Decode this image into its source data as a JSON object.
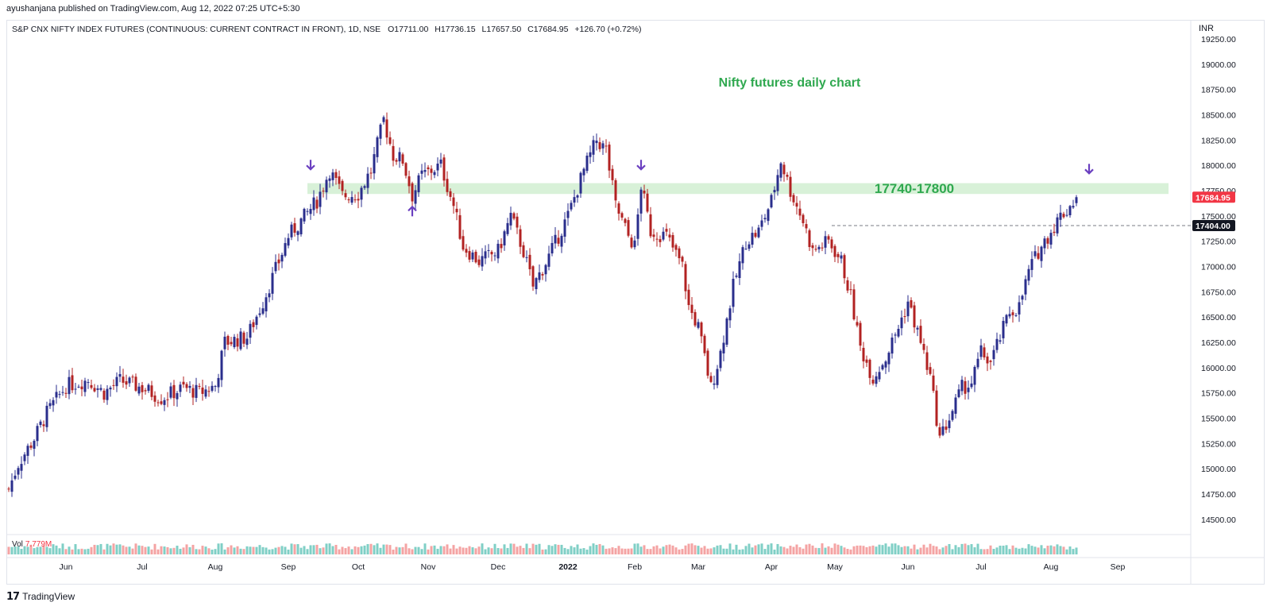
{
  "publisher_line": "ayushanjana published on TradingView.com, Aug 12, 2022 07:25 UTC+5:30",
  "footer": {
    "brand": "TradingView",
    "logo_icon": "tradingview-logo-icon"
  },
  "colors": {
    "up": "#2a2e8c",
    "down": "#b22222",
    "zone": "#d4efd4",
    "accent": "#2fa84f",
    "arrow": "#6a3fc0",
    "last_price": "#f23645",
    "vol_up": "#7fcfc6",
    "vol_down": "#f4a3a3"
  },
  "chart_data": {
    "type": "candlestick",
    "header": {
      "symbol_line": "S&P CNX NIFTY INDEX FUTURES (CONTINUOUS: CURRENT CONTRACT IN FRONT), 1D, NSE",
      "open_label": "O",
      "open": "17711.00",
      "high_label": "H",
      "high": "17736.15",
      "low_label": "L",
      "low": "17657.50",
      "close_label": "C",
      "close": "17684.95",
      "change": "+126.70 (+0.72%)"
    },
    "currency": "INR",
    "title": "Nifty  futures daily chart",
    "zone": {
      "label": "17740-17800",
      "low": 17740,
      "high": 17800
    },
    "last_price_label": "17684.95",
    "reference_label": "17404.00",
    "reference_price": 17404,
    "volume_label": "Vol",
    "volume_value": "7.779M",
    "ylim": [
      14350,
      19430
    ],
    "y_ticks": [
      "19250.00",
      "19000.00",
      "18750.00",
      "18500.00",
      "18250.00",
      "18000.00",
      "17750.00",
      "17500.00",
      "17250.00",
      "17000.00",
      "16750.00",
      "16500.00",
      "16250.00",
      "16000.00",
      "15750.00",
      "15500.00",
      "15250.00",
      "15000.00",
      "14750.00",
      "14500.00"
    ],
    "x_ticks": [
      "Jun",
      "Jul",
      "Aug",
      "Sep",
      "Oct",
      "Nov",
      "Dec",
      "2022",
      "Feb",
      "Mar",
      "Apr",
      "May",
      "Jun",
      "Jul",
      "Aug",
      "Sep"
    ],
    "x_tick_day_index": [
      18,
      42,
      65,
      88,
      110,
      132,
      154,
      176,
      197,
      217,
      240,
      260,
      283,
      306,
      328,
      349
    ],
    "markers": [
      {
        "type": "arrow-down",
        "day_index": 95,
        "price": 17960
      },
      {
        "type": "arrow-up",
        "day_index": 127,
        "price": 17590
      },
      {
        "type": "arrow-down",
        "day_index": 199,
        "price": 17960
      },
      {
        "type": "arrow-down",
        "day_index": 340,
        "price": 17920
      }
    ],
    "close_anchors": [
      [
        0,
        14800
      ],
      [
        3,
        15050
      ],
      [
        8,
        15300
      ],
      [
        12,
        15550
      ],
      [
        18,
        15820
      ],
      [
        25,
        15880
      ],
      [
        30,
        15750
      ],
      [
        35,
        15870
      ],
      [
        42,
        15800
      ],
      [
        48,
        15700
      ],
      [
        55,
        15800
      ],
      [
        60,
        15750
      ],
      [
        65,
        15820
      ],
      [
        68,
        16250
      ],
      [
        75,
        16300
      ],
      [
        80,
        16650
      ],
      [
        85,
        17050
      ],
      [
        88,
        17300
      ],
      [
        92,
        17450
      ],
      [
        97,
        17650
      ],
      [
        101,
        17950
      ],
      [
        105,
        17700
      ],
      [
        110,
        17720
      ],
      [
        114,
        17950
      ],
      [
        118,
        18450
      ],
      [
        121,
        18100
      ],
      [
        124,
        18050
      ],
      [
        127,
        17700
      ],
      [
        130,
        17900
      ],
      [
        136,
        18000
      ],
      [
        140,
        17600
      ],
      [
        143,
        17200
      ],
      [
        148,
        17050
      ],
      [
        154,
        17150
      ],
      [
        158,
        17500
      ],
      [
        162,
        17150
      ],
      [
        165,
        16800
      ],
      [
        170,
        17100
      ],
      [
        176,
        17500
      ],
      [
        181,
        17950
      ],
      [
        185,
        18250
      ],
      [
        188,
        18150
      ],
      [
        191,
        17600
      ],
      [
        195,
        17300
      ],
      [
        197,
        17200
      ],
      [
        199,
        17800
      ],
      [
        202,
        17350
      ],
      [
        207,
        17300
      ],
      [
        212,
        17000
      ],
      [
        214,
        16600
      ],
      [
        217,
        16400
      ],
      [
        221,
        15800
      ],
      [
        224,
        16150
      ],
      [
        228,
        16800
      ],
      [
        232,
        17250
      ],
      [
        236,
        17350
      ],
      [
        240,
        17650
      ],
      [
        243,
        18050
      ],
      [
        246,
        17750
      ],
      [
        250,
        17450
      ],
      [
        253,
        17150
      ],
      [
        258,
        17250
      ],
      [
        262,
        17050
      ],
      [
        265,
        16700
      ],
      [
        268,
        16200
      ],
      [
        272,
        15900
      ],
      [
        276,
        16100
      ],
      [
        280,
        16400
      ],
      [
        283,
        16650
      ],
      [
        287,
        16250
      ],
      [
        290,
        15900
      ],
      [
        293,
        15300
      ],
      [
        296,
        15500
      ],
      [
        300,
        15800
      ],
      [
        303,
        15850
      ],
      [
        306,
        16150
      ],
      [
        309,
        16050
      ],
      [
        312,
        16300
      ],
      [
        315,
        16550
      ],
      [
        318,
        16600
      ],
      [
        321,
        16950
      ],
      [
        324,
        17150
      ],
      [
        328,
        17350
      ],
      [
        331,
        17500
      ],
      [
        333,
        17560
      ],
      [
        336,
        17684.95
      ]
    ],
    "last_day_index": 336,
    "total_days": 370
  }
}
